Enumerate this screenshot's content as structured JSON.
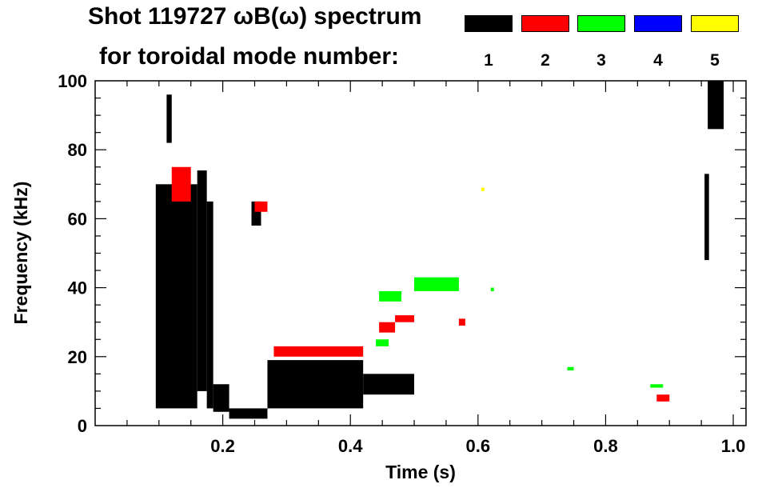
{
  "chart_data": {
    "type": "spectrogram",
    "title": "Shot 119727 ωB(ω) spectrum",
    "subtitle": "for toroidal mode number:",
    "xlabel": "Time (s)",
    "ylabel": "Frequency (kHz)",
    "xlim": [
      0.0,
      1.02
    ],
    "ylim": [
      0,
      100
    ],
    "xticks": [
      0.2,
      0.4,
      0.6,
      0.8,
      1.0
    ],
    "xtick_labels": [
      "0.2",
      "0.4",
      "0.6",
      "0.8",
      "1.0"
    ],
    "yticks": [
      0,
      20,
      40,
      60,
      80,
      100
    ],
    "ytick_labels": [
      "0",
      "20",
      "40",
      "60",
      "80",
      "100"
    ],
    "legend": [
      {
        "mode": "1",
        "color": "#000000"
      },
      {
        "mode": "2",
        "color": "#ff0000"
      },
      {
        "mode": "3",
        "color": "#00ff00"
      },
      {
        "mode": "4",
        "color": "#0000ff"
      },
      {
        "mode": "5",
        "color": "#ffff00"
      }
    ],
    "series": [
      {
        "name": "n=1",
        "color": "#000000",
        "segments": [
          {
            "t0": 0.095,
            "t1": 0.16,
            "f0": 5,
            "f1": 70
          },
          {
            "t0": 0.112,
            "t1": 0.12,
            "f0": 82,
            "f1": 96
          },
          {
            "t0": 0.16,
            "t1": 0.175,
            "f0": 10,
            "f1": 74
          },
          {
            "t0": 0.175,
            "t1": 0.185,
            "f0": 5,
            "f1": 65
          },
          {
            "t0": 0.185,
            "t1": 0.21,
            "f0": 4,
            "f1": 12
          },
          {
            "t0": 0.21,
            "t1": 0.27,
            "f0": 2,
            "f1": 5
          },
          {
            "t0": 0.27,
            "t1": 0.42,
            "f0": 5,
            "f1": 19
          },
          {
            "t0": 0.42,
            "t1": 0.5,
            "f0": 9,
            "f1": 15
          },
          {
            "t0": 0.245,
            "t1": 0.26,
            "f0": 58,
            "f1": 65
          },
          {
            "t0": 0.955,
            "t1": 0.962,
            "f0": 48,
            "f1": 73
          },
          {
            "t0": 0.96,
            "t1": 0.985,
            "f0": 86,
            "f1": 100
          }
        ]
      },
      {
        "name": "n=2",
        "color": "#ff0000",
        "segments": [
          {
            "t0": 0.12,
            "t1": 0.15,
            "f0": 65,
            "f1": 75
          },
          {
            "t0": 0.28,
            "t1": 0.42,
            "f0": 20,
            "f1": 23
          },
          {
            "t0": 0.445,
            "t1": 0.47,
            "f0": 27,
            "f1": 30
          },
          {
            "t0": 0.47,
            "t1": 0.5,
            "f0": 30,
            "f1": 32
          },
          {
            "t0": 0.57,
            "t1": 0.58,
            "f0": 29,
            "f1": 31
          },
          {
            "t0": 0.25,
            "t1": 0.27,
            "f0": 62,
            "f1": 65
          },
          {
            "t0": 0.88,
            "t1": 0.9,
            "f0": 7,
            "f1": 9
          }
        ]
      },
      {
        "name": "n=3",
        "color": "#00ff00",
        "segments": [
          {
            "t0": 0.445,
            "t1": 0.48,
            "f0": 36,
            "f1": 39
          },
          {
            "t0": 0.5,
            "t1": 0.57,
            "f0": 39,
            "f1": 43
          },
          {
            "t0": 0.44,
            "t1": 0.46,
            "f0": 23,
            "f1": 25
          },
          {
            "t0": 0.62,
            "t1": 0.625,
            "f0": 39,
            "f1": 40
          },
          {
            "t0": 0.74,
            "t1": 0.75,
            "f0": 16,
            "f1": 17
          },
          {
            "t0": 0.87,
            "t1": 0.89,
            "f0": 11,
            "f1": 12
          }
        ]
      },
      {
        "name": "n=4",
        "color": "#0000ff",
        "segments": []
      },
      {
        "name": "n=5",
        "color": "#ffff00",
        "segments": [
          {
            "t0": 0.605,
            "t1": 0.61,
            "f0": 68,
            "f1": 69
          }
        ]
      }
    ]
  }
}
